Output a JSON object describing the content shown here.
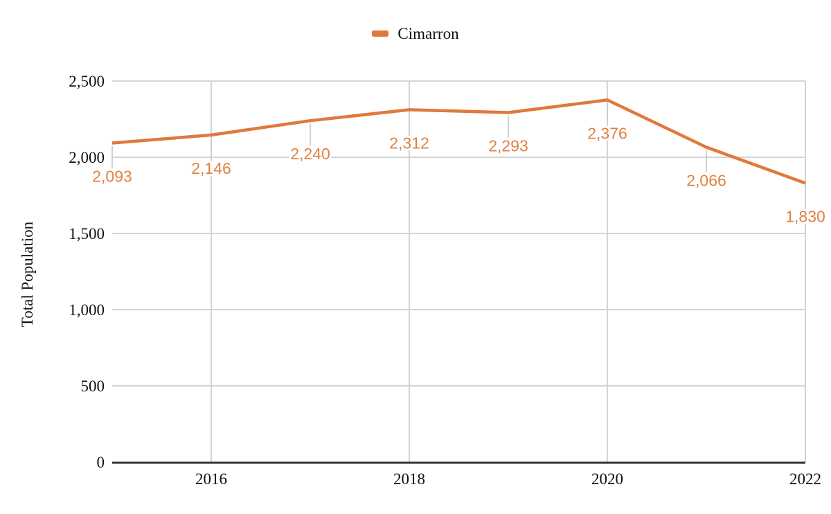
{
  "legend": {
    "label": "Cimarron"
  },
  "chart_data": {
    "type": "line",
    "title": "",
    "xlabel": "",
    "ylabel": "Total Population",
    "x": [
      2015,
      2016,
      2017,
      2018,
      2019,
      2020,
      2021,
      2022
    ],
    "series": [
      {
        "name": "Cimarron",
        "color": "#E0793C",
        "values": [
          2093,
          2146,
          2240,
          2312,
          2293,
          2376,
          2066,
          1830
        ],
        "point_labels": [
          "2,093",
          "2,146",
          "2,240",
          "2,312",
          "2,293",
          "2,376",
          "2,066",
          "1,830"
        ]
      }
    ],
    "xlim": [
      2015,
      2022
    ],
    "ylim": [
      0,
      2500
    ],
    "x_tick_values": [
      2016,
      2018,
      2020,
      2022
    ],
    "x_tick_labels": [
      "2016",
      "2018",
      "2020",
      "2022"
    ],
    "y_tick_values": [
      0,
      500,
      1000,
      1500,
      2000,
      2500
    ],
    "y_tick_labels": [
      "0",
      "500",
      "1,000",
      "1,500",
      "2,000",
      "2,500"
    ],
    "grid": true,
    "legend_position": "top-center",
    "colors": {
      "line": "#E0793C",
      "data_label": "#E0823F",
      "grid": "#D4D4D4",
      "leader": "#CDCDCD",
      "axis": "#333333",
      "text": "#111111",
      "background": "#FFFFFF"
    }
  }
}
